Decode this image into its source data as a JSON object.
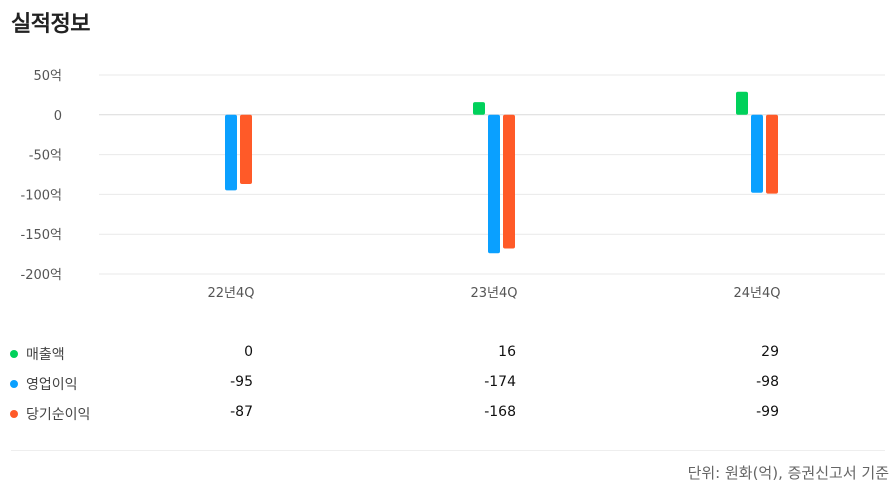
{
  "header": {
    "title": "실적정보"
  },
  "footer": {
    "unit": "단위: 원화(억), 증권신고서 기준"
  },
  "colors": {
    "sales": "#00d15b",
    "operating": "#0aa0ff",
    "net": "#ff5a28"
  },
  "chart_data": {
    "type": "bar",
    "categories": [
      "22년4Q",
      "23년4Q",
      "24년4Q"
    ],
    "series": [
      {
        "name": "매출액",
        "values": [
          0,
          16,
          29
        ]
      },
      {
        "name": "영업이익",
        "values": [
          -95,
          -174,
          -98
        ]
      },
      {
        "name": "당기순이익",
        "values": [
          -87,
          -168,
          -99
        ]
      }
    ],
    "yticks": [
      "50억",
      "0",
      "-50억",
      "-100억",
      "-150억",
      "-200억"
    ],
    "ytick_values": [
      50,
      0,
      -50,
      -100,
      -150,
      -200
    ],
    "ylim": [
      -200,
      50
    ],
    "xlabel": "",
    "ylabel": ""
  },
  "table": {
    "rows": [
      {
        "label": "매출액",
        "values": [
          "0",
          "16",
          "29"
        ]
      },
      {
        "label": "영업이익",
        "values": [
          "-95",
          "-174",
          "-98"
        ]
      },
      {
        "label": "당기순이익",
        "values": [
          "-87",
          "-168",
          "-99"
        ]
      }
    ]
  }
}
